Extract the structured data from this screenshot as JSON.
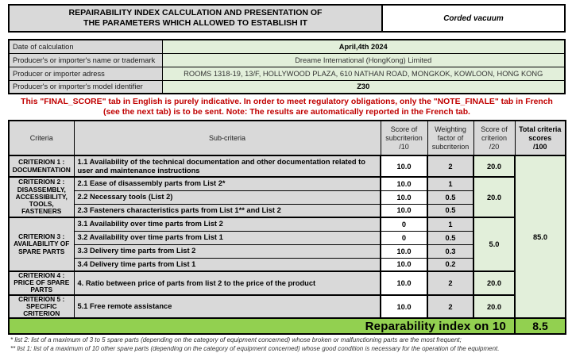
{
  "header": {
    "title_line1": "REPAIRABILITY INDEX CALCULATION AND PRESENTATION OF",
    "title_line2": "THE PARAMETERS WHICH ALLOWED TO ESTABLISH IT",
    "product_type": "Corded vacuum"
  },
  "info": {
    "rows": [
      {
        "label": "Date of calculation",
        "value": "April,4th 2024"
      },
      {
        "label": "Producer's or importer's name or trademark",
        "value": "Dreame International (HongKong) Limited"
      },
      {
        "label": "Producer or importer adress",
        "value": "ROOMS 1318-19, 13/F, HOLLYWOOD PLAZA, 610 NATHAN ROAD, MONGKOK, KOWLOON, HONG KONG"
      },
      {
        "label": "Producer's or importer's model identifier",
        "value": "Z30"
      }
    ]
  },
  "notice": {
    "line1": "This \"FINAL_SCORE\" tab in English is purely indicative. In order to meet regulatory obligations, only the \"NOTE_FINALE\" tab in French",
    "line2": "(see the next tab) is to be sent. Note: The results are automatically reported in the French tab."
  },
  "table": {
    "headers": {
      "criteria": "Criteria",
      "sub_criteria": "Sub-criteria",
      "score_sub": "Score of\nsubcriterion\n/10",
      "weighting": "Weighting\nfactor of\nsubcriterion",
      "score_crit": "Score of\ncriterion\n/20",
      "total": "Total criteria\nscores\n/100"
    },
    "criteria": [
      {
        "label": "CRITERION 1 : DOCUMENTATION",
        "criterion_score": "20.0"
      },
      {
        "label": "CRITERION 2 : DISASSEMBLY, ACCESSIBILITY, TOOLS, FASTENERS",
        "criterion_score": "20.0"
      },
      {
        "label": "CRITERION 3 : AVAILABILITY OF SPARE PARTS",
        "criterion_score": "5.0"
      },
      {
        "label": "CRITERION 4 : PRICE OF SPARE PARTS",
        "criterion_score": "20.0"
      },
      {
        "label": "CRITERION 5 : SPECIFIC CRITERION",
        "criterion_score": "20.0"
      }
    ],
    "rows": [
      {
        "sub": "1.1 Availability of the technical documentation and other documentation related to user and maintenance instructions",
        "score": "10.0",
        "weight": "2"
      },
      {
        "sub": "2.1 Ease of disassembly parts from List 2*",
        "score": "10.0",
        "weight": "1"
      },
      {
        "sub": "2.2 Necessary tools (List 2)",
        "score": "10.0",
        "weight": "0.5"
      },
      {
        "sub": "2.3 Fasteners characteristics parts from List 1** and List 2",
        "score": "10.0",
        "weight": "0.5"
      },
      {
        "sub": "3.1 Availability over time parts from List 2",
        "score": "0",
        "weight": "1"
      },
      {
        "sub": "3.2 Availability over time parts from List 1",
        "score": "0",
        "weight": "0.5"
      },
      {
        "sub": "3.3 Delivery time parts from List 2",
        "score": "10.0",
        "weight": "0.3"
      },
      {
        "sub": "3.4 Delivery time parts from List 1",
        "score": "10.0",
        "weight": "0.2"
      },
      {
        "sub": "4. Ratio between price of parts from list 2 to the price of the product",
        "score": "10.0",
        "weight": "2"
      },
      {
        "sub": "5.1 Free remote assistance",
        "score": "10.0",
        "weight": "2"
      }
    ],
    "total_score": "85.0"
  },
  "result": {
    "label": "Reparability index on 10",
    "value": "8.5"
  },
  "footnotes": [
    "* list 2: list of a maximum of 3 to 5 spare parts (depending on the category of equipment concerned) whose broken or malfunctioning parts are the most frequent;",
    "** list 1: list of a maximum of 10 other spare parts (depending on the category of equipment concerned) whose good condition is necessary for the operation of the equipment."
  ],
  "colors": {
    "accent_green": "#92d050",
    "light_green": "#e2efda",
    "cell_gray": "#d9d9d9",
    "notice_red": "#c00000"
  }
}
